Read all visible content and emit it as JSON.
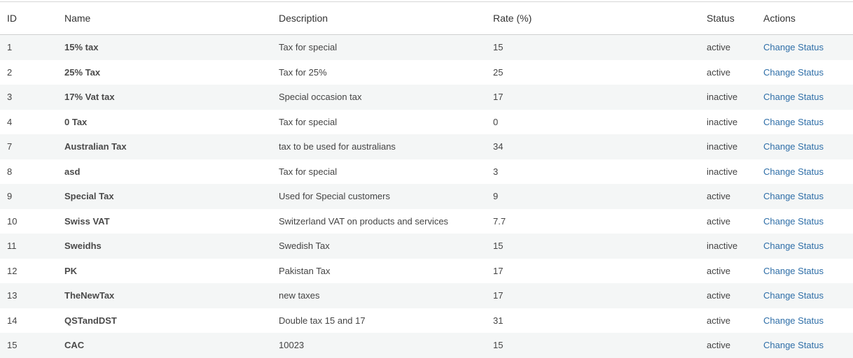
{
  "table": {
    "headers": [
      "ID",
      "Name",
      "Description",
      "Rate (%)",
      "Status",
      "Actions"
    ],
    "rows": [
      [
        "1",
        "15% tax",
        "Tax for special",
        "15",
        "active",
        "Change Status"
      ],
      [
        "2",
        "25% Tax",
        "Tax for 25%",
        "25",
        "active",
        "Change Status"
      ],
      [
        "3",
        "17% Vat tax",
        "Special occasion tax",
        "17",
        "inactive",
        "Change Status"
      ],
      [
        "4",
        "0 Tax",
        "Tax for special",
        "0",
        "inactive",
        "Change Status"
      ],
      [
        "7",
        "Australian Tax",
        "tax to be used for australians",
        "34",
        "inactive",
        "Change Status"
      ],
      [
        "8",
        "asd",
        "Tax for special",
        "3",
        "inactive",
        "Change Status"
      ],
      [
        "9",
        "Special Tax",
        "Used for Special customers",
        "9",
        "active",
        "Change Status"
      ],
      [
        "10",
        "Swiss VAT",
        "Switzerland VAT on products and services",
        "7.7",
        "active",
        "Change Status"
      ],
      [
        "11",
        "Sweidhs",
        "Swedish Tax",
        "15",
        "inactive",
        "Change Status"
      ],
      [
        "12",
        "PK",
        "Pakistan Tax",
        "17",
        "active",
        "Change Status"
      ],
      [
        "13",
        "TheNewTax",
        "new taxes",
        "17",
        "active",
        "Change Status"
      ],
      [
        "14",
        "QSTandDST",
        "Double tax 15 and 17",
        "31",
        "active",
        "Change Status"
      ],
      [
        "15",
        "CAC",
        "10023",
        "15",
        "active",
        "Change Status"
      ]
    ]
  }
}
